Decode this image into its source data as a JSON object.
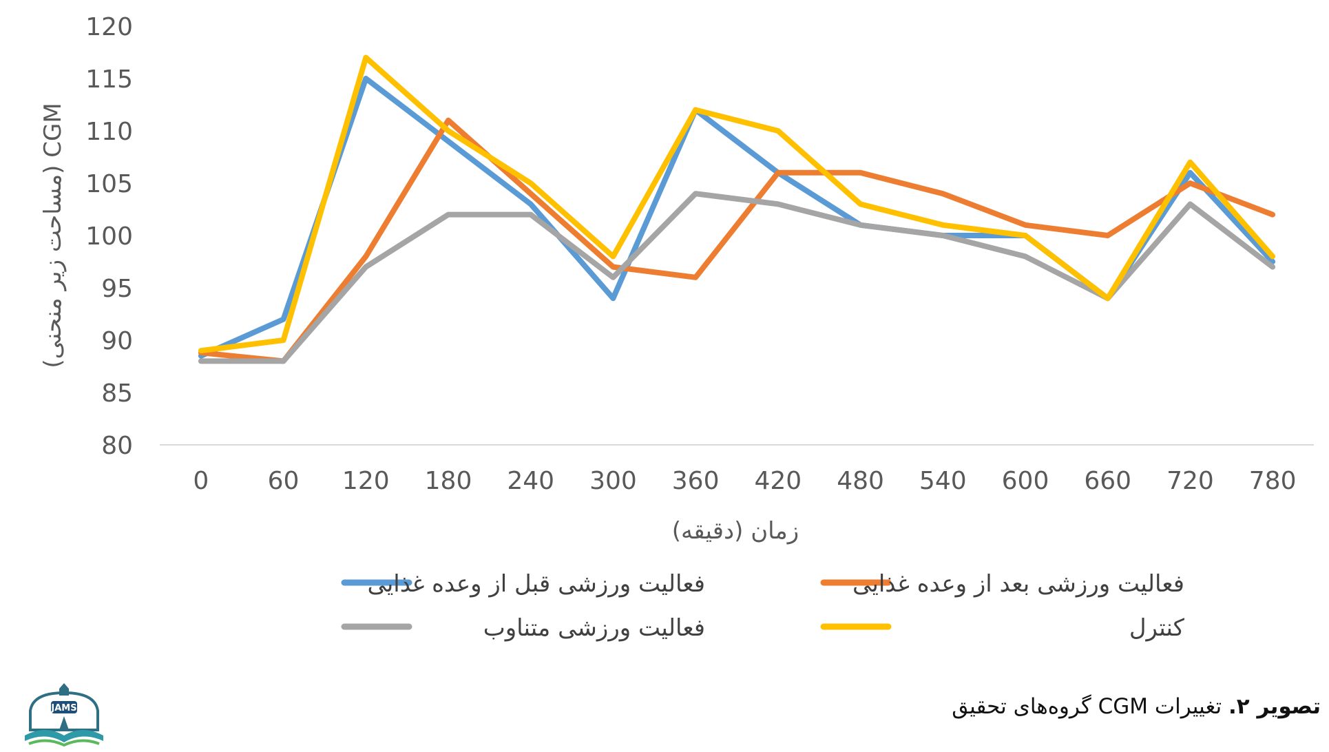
{
  "chart_data": {
    "type": "line",
    "x": [
      0,
      60,
      120,
      180,
      240,
      300,
      360,
      420,
      480,
      540,
      600,
      660,
      720,
      780
    ],
    "xlabel": "زمان (دقیقه)",
    "ylabel": "CGM (مساحت زیر منحنی)",
    "ylim": [
      80,
      120
    ],
    "yticks": [
      80,
      85,
      90,
      95,
      100,
      105,
      110,
      115,
      120
    ],
    "grid": "baseline only",
    "legend_position": "bottom",
    "series": [
      {
        "name": "فعالیت ورزشی قبل از وعده غذایی",
        "color": "#5B9BD5",
        "values": [
          88.5,
          92,
          115,
          109,
          103,
          94,
          112,
          106,
          101,
          100,
          100,
          94,
          106,
          97.5
        ]
      },
      {
        "name": "فعالیت ورزشی بعد از وعده غذایی",
        "color": "#ED7D31",
        "values": [
          88.8,
          88,
          98,
          111,
          104,
          97,
          96,
          106,
          106,
          104,
          101,
          100,
          105,
          102
        ]
      },
      {
        "name": "فعالیت ورزشی متناوب",
        "color": "#A5A5A5",
        "values": [
          88,
          88,
          97,
          102,
          102,
          96,
          104,
          103,
          101,
          100,
          98,
          94,
          103,
          97
        ]
      },
      {
        "name": "کنترل",
        "color": "#FFC000",
        "values": [
          89,
          90,
          117,
          110,
          105,
          98,
          112,
          110,
          103,
          101,
          100,
          94,
          107,
          98
        ]
      }
    ]
  },
  "caption": {
    "label": "تصویر ۲.",
    "text": "تغییرات CGM گروه‌های تحقیق"
  },
  "logo": {
    "text": "JAMS"
  }
}
